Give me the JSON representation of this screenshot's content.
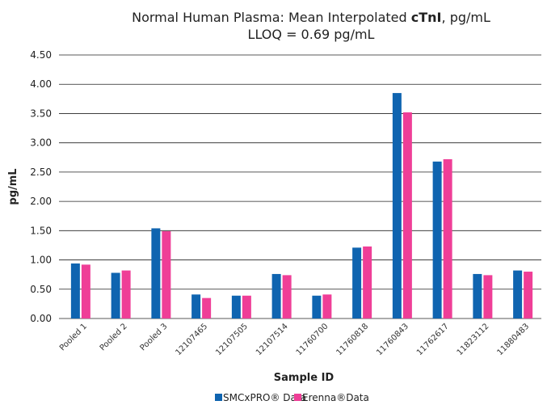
{
  "chart_data": {
    "type": "bar",
    "title": {
      "prefix": "Normal Human Plasma: Mean Interpolated ",
      "bold": "cTnI",
      "suffix": ", pg/mL"
    },
    "subtitle": "LLOQ = 0.69 pg/mL",
    "xlabel": "Sample ID",
    "ylabel": "pg/mL",
    "ylim": [
      0,
      4.5
    ],
    "yticks": [
      "0.00",
      "0.50",
      "1.00",
      "1.50",
      "2.00",
      "2.50",
      "3.00",
      "3.50",
      "4.00",
      "4.50"
    ],
    "grid": true,
    "legend_position": "bottom",
    "categories": [
      "Pooled 1",
      "Pooled 2",
      "Pooled 3",
      "12107465",
      "12107505",
      "12107514",
      "11760700",
      "11760818",
      "11760843",
      "11762617",
      "11823112",
      "11880483"
    ],
    "series": [
      {
        "name": "SMCxPRO® Data",
        "color": "#0f64b0",
        "values": [
          0.94,
          0.78,
          1.54,
          0.41,
          0.39,
          0.76,
          0.39,
          1.21,
          3.85,
          2.68,
          0.76,
          0.82
        ]
      },
      {
        "name": "Erenna®Data",
        "color": "#ef3e97",
        "values": [
          0.92,
          0.82,
          1.49,
          0.35,
          0.39,
          0.74,
          0.41,
          1.23,
          3.52,
          2.72,
          0.74,
          0.8
        ]
      }
    ]
  }
}
